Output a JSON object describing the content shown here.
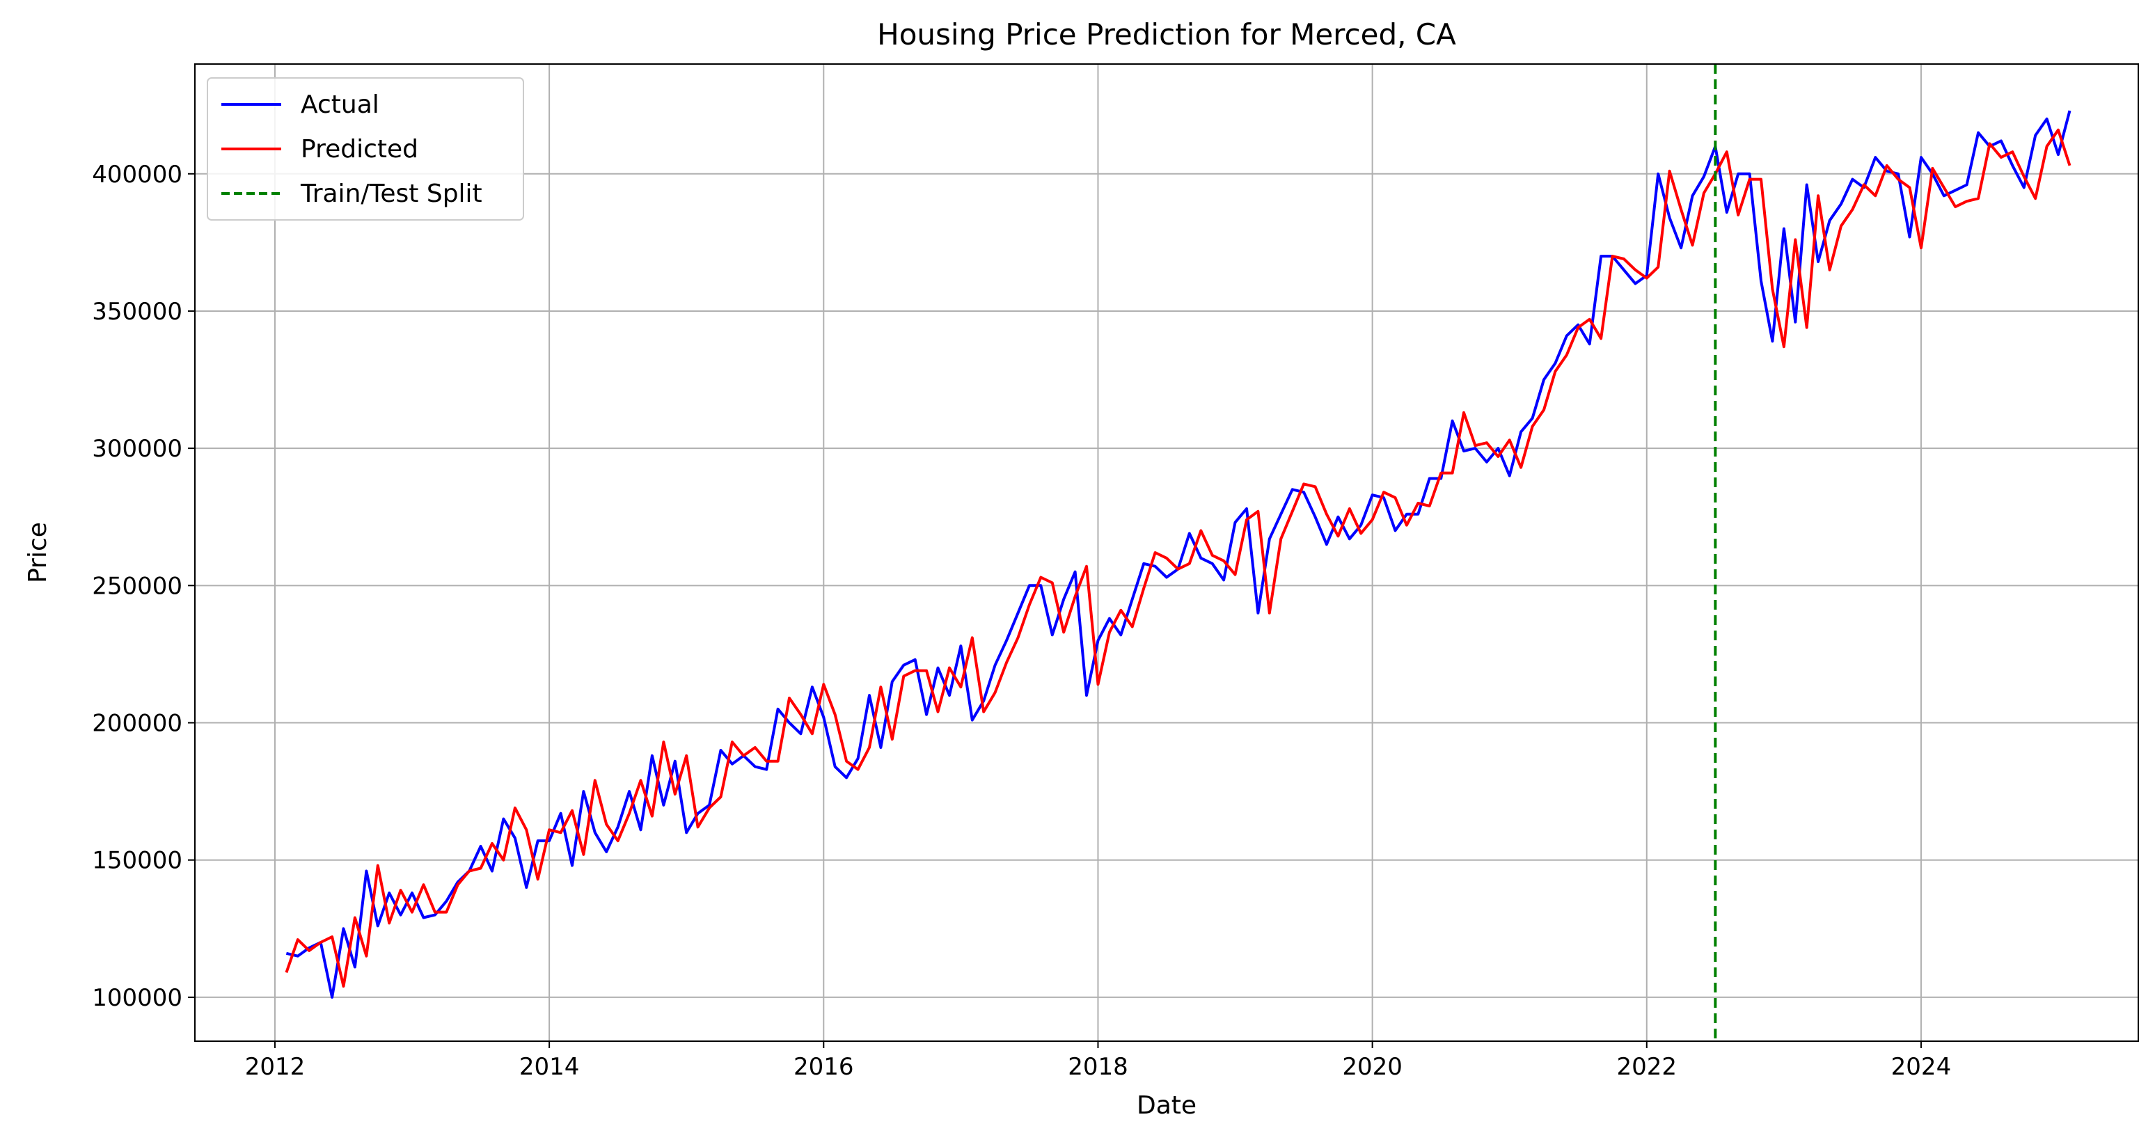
{
  "chart_data": {
    "type": "line",
    "title": "Housing Price Prediction for Merced, CA",
    "xlabel": "Date",
    "ylabel": "Price",
    "x_axis": "date",
    "xlim": [
      "2011-06-01",
      "2025-08-01"
    ],
    "ylim": [
      84000,
      440000
    ],
    "x_ticks": [
      "2012",
      "2014",
      "2016",
      "2018",
      "2020",
      "2022",
      "2024"
    ],
    "y_ticks": [
      "100000",
      "150000",
      "200000",
      "250000",
      "300000",
      "350000",
      "400000"
    ],
    "grid": true,
    "legend_position": "top-left",
    "colors": {
      "actual": "#0000ff",
      "predicted": "#ff0000",
      "split": "#008000"
    },
    "split": {
      "name": "Train/Test Split",
      "date": "2022-07-01",
      "style": "dashed"
    },
    "x": [
      "2012-02",
      "2012-03",
      "2012-04",
      "2012-05",
      "2012-06",
      "2012-07",
      "2012-08",
      "2012-09",
      "2012-10",
      "2012-11",
      "2012-12",
      "2013-01",
      "2013-02",
      "2013-03",
      "2013-04",
      "2013-05",
      "2013-06",
      "2013-07",
      "2013-08",
      "2013-09",
      "2013-10",
      "2013-11",
      "2013-12",
      "2014-01",
      "2014-02",
      "2014-03",
      "2014-04",
      "2014-05",
      "2014-06",
      "2014-07",
      "2014-08",
      "2014-09",
      "2014-10",
      "2014-11",
      "2014-12",
      "2015-01",
      "2015-02",
      "2015-03",
      "2015-04",
      "2015-05",
      "2015-06",
      "2015-07",
      "2015-08",
      "2015-09",
      "2015-10",
      "2015-11",
      "2015-12",
      "2016-01",
      "2016-02",
      "2016-03",
      "2016-04",
      "2016-05",
      "2016-06",
      "2016-07",
      "2016-08",
      "2016-09",
      "2016-10",
      "2016-11",
      "2016-12",
      "2017-01",
      "2017-02",
      "2017-03",
      "2017-04",
      "2017-05",
      "2017-06",
      "2017-07",
      "2017-08",
      "2017-09",
      "2017-10",
      "2017-11",
      "2017-12",
      "2018-01",
      "2018-02",
      "2018-03",
      "2018-04",
      "2018-05",
      "2018-06",
      "2018-07",
      "2018-08",
      "2018-09",
      "2018-10",
      "2018-11",
      "2018-12",
      "2019-01",
      "2019-02",
      "2019-03",
      "2019-04",
      "2019-05",
      "2019-06",
      "2019-07",
      "2019-08",
      "2019-09",
      "2019-10",
      "2019-11",
      "2019-12",
      "2020-01",
      "2020-02",
      "2020-03",
      "2020-04",
      "2020-05",
      "2020-06",
      "2020-07",
      "2020-08",
      "2020-09",
      "2020-10",
      "2020-11",
      "2020-12",
      "2021-01",
      "2021-02",
      "2021-03",
      "2021-04",
      "2021-05",
      "2021-06",
      "2021-07",
      "2021-08",
      "2021-09",
      "2021-10",
      "2021-11",
      "2021-12",
      "2022-01",
      "2022-02",
      "2022-03",
      "2022-04",
      "2022-05",
      "2022-06",
      "2022-07",
      "2022-08",
      "2022-09",
      "2022-10",
      "2022-11",
      "2022-12",
      "2023-01",
      "2023-02",
      "2023-03",
      "2023-04",
      "2023-05",
      "2023-06",
      "2023-07",
      "2023-08",
      "2023-09",
      "2023-10",
      "2023-11",
      "2023-12",
      "2024-01",
      "2024-02",
      "2024-03",
      "2024-04",
      "2024-05",
      "2024-06",
      "2024-07",
      "2024-08",
      "2024-09",
      "2024-10",
      "2024-11",
      "2024-12",
      "2025-01",
      "2025-02"
    ],
    "series": [
      {
        "name": "Actual",
        "key": "actual",
        "style": "solid",
        "values": [
          116000,
          115000,
          118000,
          120000,
          100000,
          125000,
          111000,
          146000,
          126000,
          138000,
          130000,
          138000,
          129000,
          130000,
          135000,
          142000,
          146000,
          155000,
          146000,
          165000,
          158000,
          140000,
          157000,
          157000,
          167000,
          148000,
          175000,
          160000,
          153000,
          162000,
          175000,
          161000,
          188000,
          170000,
          186000,
          160000,
          167000,
          170000,
          190000,
          185000,
          188000,
          184000,
          183000,
          205000,
          200000,
          196000,
          213000,
          202000,
          184000,
          180000,
          187000,
          210000,
          191000,
          215000,
          221000,
          223000,
          203000,
          220000,
          210000,
          228000,
          201000,
          208000,
          221000,
          230000,
          240000,
          250000,
          250000,
          232000,
          245000,
          255000,
          210000,
          230000,
          238000,
          232000,
          245000,
          258000,
          257000,
          253000,
          256000,
          269000,
          260000,
          258000,
          252000,
          273000,
          278000,
          240000,
          267000,
          276000,
          285000,
          284000,
          275000,
          265000,
          275000,
          267000,
          272000,
          283000,
          282000,
          270000,
          276000,
          276000,
          289000,
          289000,
          310000,
          299000,
          300000,
          295000,
          300000,
          290000,
          306000,
          311000,
          325000,
          331000,
          341000,
          345000,
          338000,
          370000,
          370000,
          365000,
          360000,
          363000,
          400000,
          384000,
          373000,
          392000,
          399000,
          410000,
          386000,
          400000,
          400000,
          361000,
          339000,
          380000,
          346000,
          396000,
          368000,
          383000,
          389000,
          398000,
          395000,
          406000,
          401000,
          400000,
          377000,
          406000,
          400000,
          392000,
          394000,
          396000,
          415000,
          410000,
          412000,
          403000,
          395000,
          414000,
          420000,
          407000,
          423000
        ]
      },
      {
        "name": "Predicted",
        "key": "predicted",
        "style": "solid",
        "values": [
          109000,
          121000,
          117000,
          120000,
          122000,
          104000,
          129000,
          115000,
          148000,
          127000,
          139000,
          131000,
          141000,
          131000,
          131000,
          141000,
          146000,
          147000,
          156000,
          150000,
          169000,
          161000,
          143000,
          161000,
          160000,
          168000,
          152000,
          179000,
          163000,
          157000,
          167000,
          179000,
          166000,
          193000,
          174000,
          188000,
          162000,
          169000,
          173000,
          193000,
          188000,
          191000,
          186000,
          186000,
          209000,
          203000,
          196000,
          214000,
          203000,
          186000,
          183000,
          191000,
          213000,
          194000,
          217000,
          219000,
          219000,
          204000,
          220000,
          213000,
          231000,
          204000,
          211000,
          222000,
          231000,
          243000,
          253000,
          251000,
          233000,
          246000,
          257000,
          214000,
          233000,
          241000,
          235000,
          249000,
          262000,
          260000,
          256000,
          258000,
          270000,
          261000,
          259000,
          254000,
          274000,
          277000,
          240000,
          267000,
          277000,
          287000,
          286000,
          276000,
          268000,
          278000,
          269000,
          274000,
          284000,
          282000,
          272000,
          280000,
          279000,
          291000,
          291000,
          313000,
          301000,
          302000,
          297000,
          303000,
          293000,
          308000,
          314000,
          328000,
          334000,
          344000,
          347000,
          340000,
          370000,
          369000,
          365000,
          362000,
          366000,
          401000,
          387000,
          374000,
          393000,
          400000,
          408000,
          385000,
          398000,
          398000,
          358000,
          337000,
          376000,
          344000,
          392000,
          365000,
          381000,
          387000,
          396000,
          392000,
          403000,
          398000,
          395000,
          373000,
          402000,
          395000,
          388000,
          390000,
          391000,
          411000,
          406000,
          408000,
          399000,
          391000,
          410000,
          416000,
          403000
        ]
      }
    ],
    "legend": [
      "Actual",
      "Predicted",
      "Train/Test Split"
    ]
  }
}
